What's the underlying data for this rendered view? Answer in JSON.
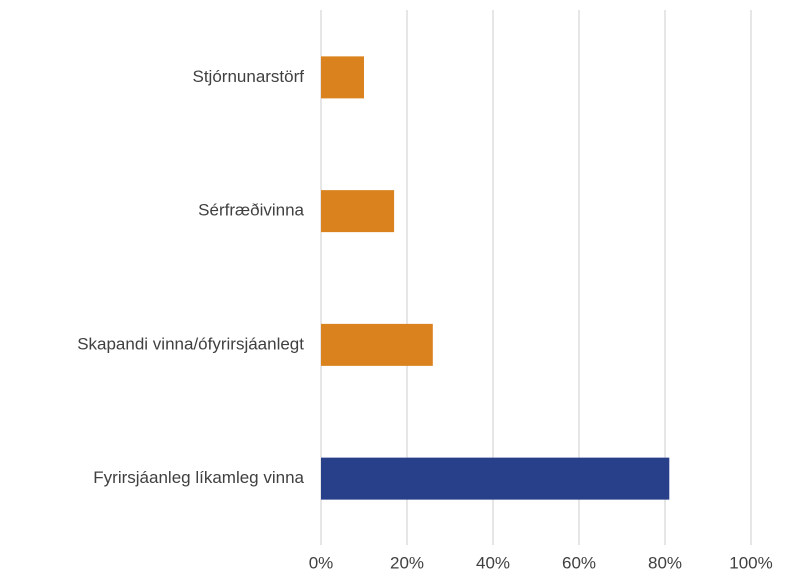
{
  "chart_data": {
    "type": "barh",
    "categories": [
      "Stjórnunarstörf",
      "Sérfræðivinna",
      "Skapandi vinna/ófyrirsjáanlegt",
      "Fyrirsjáanleg líkamleg vinna"
    ],
    "values": [
      10,
      17,
      26,
      81
    ],
    "colors": [
      "#d9821e",
      "#d9821e",
      "#d9821e",
      "#283f8a"
    ],
    "xlim": [
      0,
      100
    ],
    "xticks": [
      {
        "value": 0,
        "label": "0%"
      },
      {
        "value": 20,
        "label": "20%"
      },
      {
        "value": 40,
        "label": "40%"
      },
      {
        "value": 60,
        "label": "60%"
      },
      {
        "value": 80,
        "label": "80%"
      },
      {
        "value": 100,
        "label": "100%"
      }
    ],
    "grid": true
  }
}
